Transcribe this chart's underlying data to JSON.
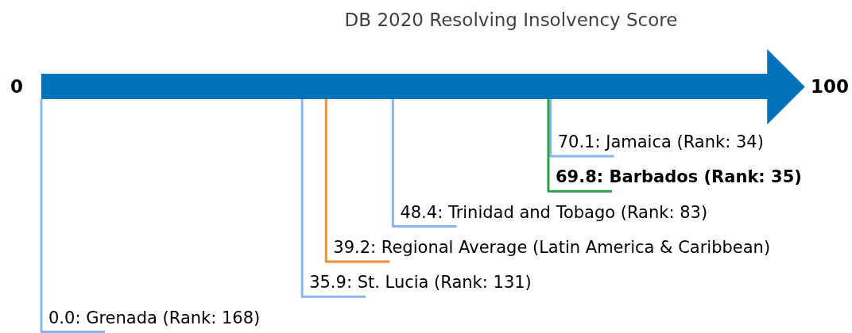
{
  "chart_data": {
    "type": "other",
    "title": "DB 2020 Resolving Insolvency Score",
    "values": [
      70.1,
      69.8,
      48.4,
      39.2,
      35.9,
      0.0
    ],
    "value_labels": [
      "70.1: Jamaica (Rank: 34)",
      "69.8: Barbados (Rank: 35)",
      "48.4: Trinidad and Tobago (Rank: 83)",
      "39.2: Regional Average (Latin America & Caribbean)",
      "35.9: St. Lucia (Rank: 131)",
      "0.0: Grenada (Rank: 168)"
    ],
    "colors": [
      "#8ab4ec",
      "#2e9e45",
      "#8ab4ec",
      "#f28e2b",
      "#8ab4ec",
      "#8ab4ec"
    ],
    "annotations": [
      "0",
      "100"
    ]
  }
}
